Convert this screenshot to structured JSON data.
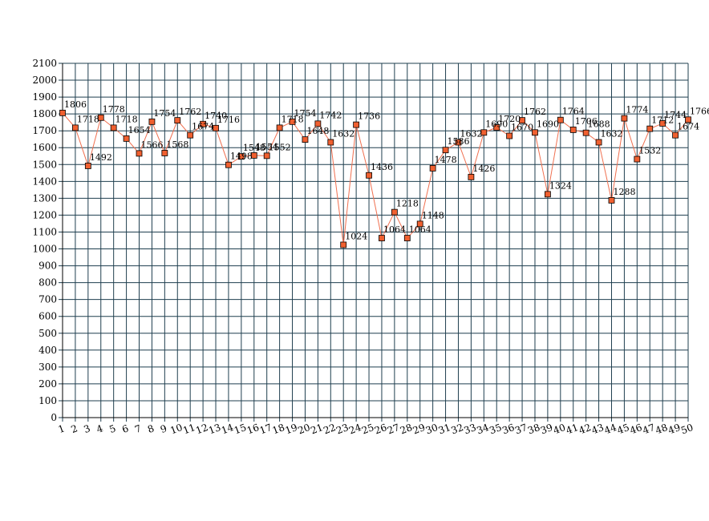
{
  "chart_data": {
    "type": "line",
    "title": "",
    "xlabel": "",
    "ylabel": "",
    "x": [
      1,
      2,
      3,
      4,
      5,
      6,
      7,
      8,
      9,
      10,
      11,
      12,
      13,
      14,
      15,
      16,
      17,
      18,
      19,
      20,
      21,
      22,
      23,
      24,
      25,
      26,
      27,
      28,
      29,
      30,
      31,
      32,
      33,
      34,
      35,
      36,
      37,
      38,
      39,
      40,
      41,
      42,
      43,
      44,
      45,
      46,
      47,
      48,
      49,
      50
    ],
    "series": [
      {
        "values": [
          1806,
          1718,
          1492,
          1778,
          1718,
          1654,
          1566,
          1754,
          1568,
          1762,
          1674,
          1740,
          1716,
          1498,
          1548,
          1554,
          1552,
          1718,
          1754,
          1648,
          1742,
          1632,
          1024,
          1736,
          1436,
          1064,
          1218,
          1064,
          1148,
          1478,
          1586,
          1632,
          1426,
          1690,
          1720,
          1670,
          1762,
          1690,
          1324,
          1764,
          1706,
          1688,
          1632,
          1288,
          1774,
          1532,
          1712,
          1744,
          1674,
          1766
        ],
        "line_color": "#f07050",
        "marker_color": "#f06030"
      }
    ],
    "ylim": [
      0,
      2100
    ],
    "ytick_step": 100,
    "grid": true,
    "grid_color": "#1f3f4f",
    "legend": "none"
  }
}
